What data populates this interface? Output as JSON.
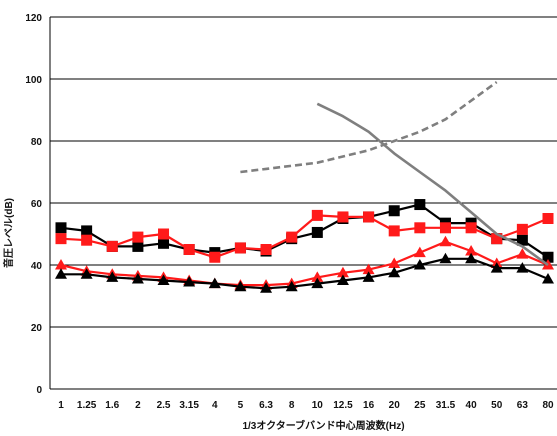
{
  "chart_data": {
    "type": "line",
    "xlabel": "1/3オクターブバンド中心周波数(Hz)",
    "ylabel": "音圧レベル(dB)",
    "ylim": [
      0,
      120
    ],
    "yticks": [
      0,
      20,
      40,
      60,
      80,
      100,
      120
    ],
    "grid": "horizontal",
    "legend": "none",
    "categories": [
      "1",
      "1.25",
      "1.6",
      "2",
      "2.5",
      "3.15",
      "4",
      "5",
      "6.3",
      "8",
      "10",
      "12.5",
      "16",
      "20",
      "25",
      "31.5",
      "40",
      "50",
      "63",
      "80"
    ],
    "series": [
      {
        "color": "#000000",
        "marker": "square",
        "line": "solid",
        "values": [
          52,
          51,
          46,
          46,
          47,
          45,
          44,
          45.5,
          44.5,
          48.5,
          50.5,
          55,
          55.5,
          57.5,
          59.5,
          53.5,
          53.5,
          48.5,
          48,
          42.5
        ]
      },
      {
        "color": "#ff1a1a",
        "marker": "square",
        "line": "solid",
        "values": [
          48.5,
          48,
          46,
          49,
          50,
          45,
          42.5,
          45.5,
          45,
          49,
          56,
          55.5,
          55.5,
          51,
          52,
          52,
          52,
          48.5,
          51.5,
          55
        ]
      },
      {
        "color": "#ff1a1a",
        "marker": "triangle",
        "line": "solid",
        "values": [
          40,
          38,
          37,
          36.5,
          36,
          35,
          34,
          33.5,
          33.5,
          34,
          36,
          37.5,
          38.5,
          40.5,
          44,
          47.5,
          44.5,
          40.5,
          43.5,
          40
        ]
      },
      {
        "color": "#000000",
        "marker": "triangle",
        "line": "solid",
        "values": [
          37,
          37,
          36,
          35.5,
          35,
          34.5,
          34,
          33,
          32.5,
          33,
          34,
          35,
          36,
          37.5,
          40,
          42,
          42,
          39,
          39,
          35.5
        ]
      },
      {
        "color": "#7f7f7f",
        "marker": "none",
        "line": "solid",
        "values": [
          null,
          null,
          null,
          null,
          null,
          null,
          null,
          null,
          null,
          null,
          92,
          88,
          83,
          76,
          70,
          64,
          57,
          50,
          46,
          40
        ]
      },
      {
        "color": "#7f7f7f",
        "marker": "none",
        "line": "dashed",
        "values": [
          null,
          null,
          null,
          null,
          null,
          null,
          null,
          70,
          71,
          72,
          73,
          75,
          77,
          80,
          83,
          87,
          93,
          99,
          null,
          null
        ]
      }
    ]
  }
}
